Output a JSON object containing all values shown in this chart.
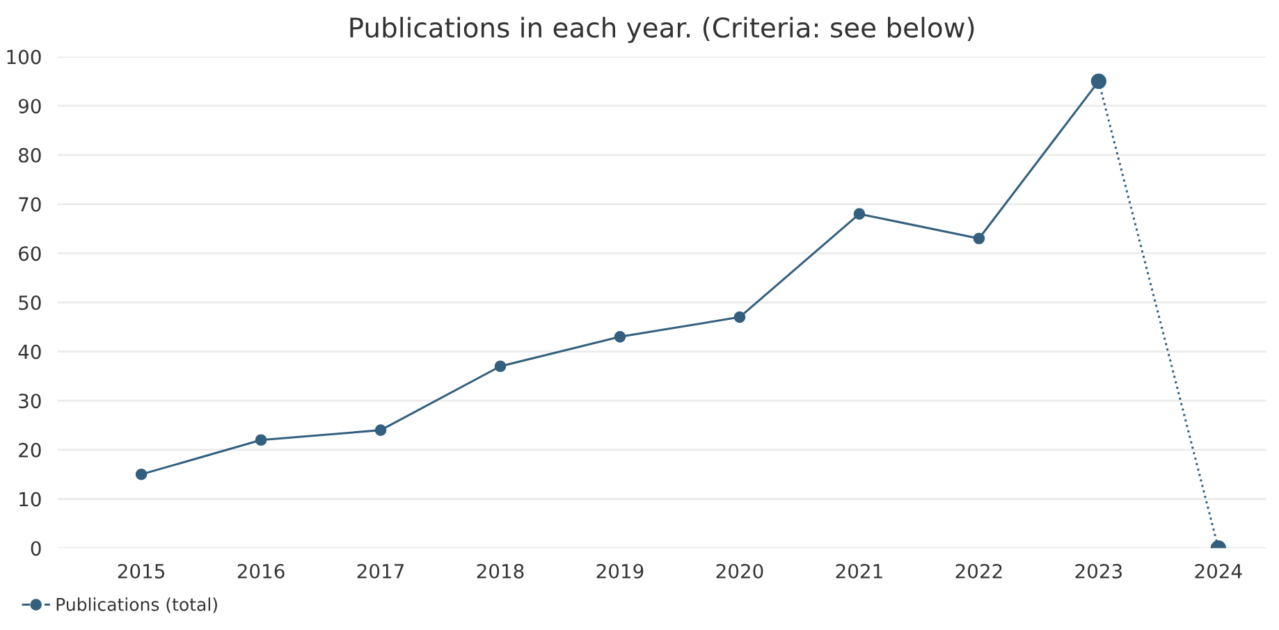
{
  "chart_data": {
    "type": "line",
    "title": "Publications in each year. (Criteria: see below)",
    "categories": [
      "2015",
      "2016",
      "2017",
      "2018",
      "2019",
      "2020",
      "2021",
      "2022",
      "2023",
      "2024"
    ],
    "series": [
      {
        "name": "Publications (total)",
        "color": "#33607f",
        "line_style": "solid",
        "values": [
          15,
          22,
          24,
          37,
          43,
          47,
          68,
          63,
          95,
          null
        ]
      },
      {
        "color": "#33607f",
        "line_style": "dotted",
        "values": [
          null,
          null,
          null,
          null,
          null,
          null,
          null,
          null,
          95,
          0
        ]
      }
    ],
    "ylim": [
      0,
      100
    ],
    "yticks": [
      0,
      10,
      20,
      30,
      40,
      50,
      60,
      70,
      80,
      90,
      100
    ],
    "grid": "y",
    "legend": "bottom left",
    "marker": "circle"
  }
}
